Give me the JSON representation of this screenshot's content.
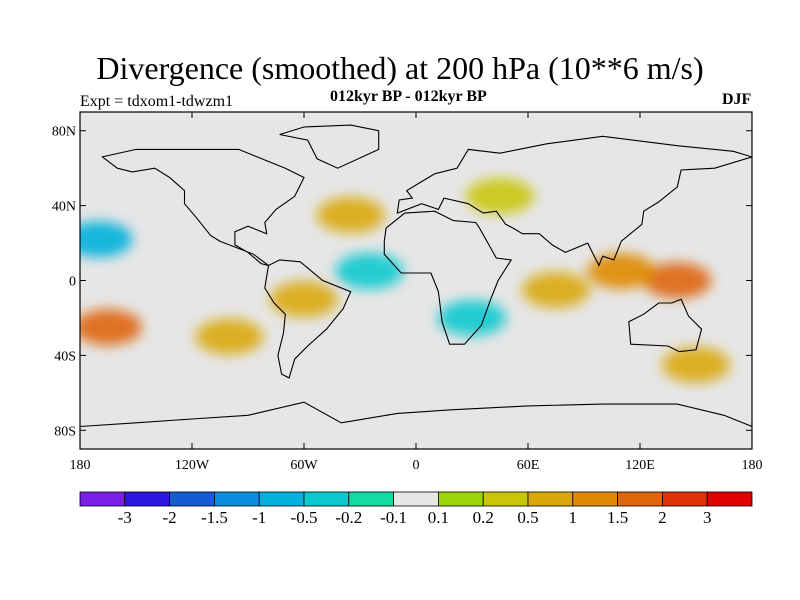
{
  "chart_data": {
    "type": "heatmap",
    "title": "Divergence (smoothed) at 200 hPa (10**6 m/s)",
    "left_string": "Expt = tdxom1-tdwzm1",
    "center_string": "012kyr BP - 012kyr BP",
    "right_string": "DJF",
    "variable": "200 hPa divergence (smoothed), difference",
    "units": "10**6 m/s",
    "xlim": [
      -180,
      180
    ],
    "ylim": [
      -90,
      90
    ],
    "x_ticks": [
      {
        "value": -180,
        "label": "180"
      },
      {
        "value": -120,
        "label": "120W"
      },
      {
        "value": -60,
        "label": "60W"
      },
      {
        "value": 0,
        "label": "0"
      },
      {
        "value": 60,
        "label": "60E"
      },
      {
        "value": 120,
        "label": "120E"
      },
      {
        "value": 180,
        "label": "180"
      }
    ],
    "y_ticks": [
      {
        "value": 80,
        "label": "80N"
      },
      {
        "value": 40,
        "label": "40N"
      },
      {
        "value": 0,
        "label": "0"
      },
      {
        "value": -40,
        "label": "40S"
      },
      {
        "value": -80,
        "label": "80S"
      }
    ],
    "color_levels": [
      "-3",
      "-2",
      "-1.5",
      "-1",
      "-0.5",
      "-0.2",
      "-0.1",
      "0.1",
      "0.2",
      "0.5",
      "1",
      "1.5",
      "2",
      "3"
    ],
    "colors": [
      "#7b1fe6",
      "#2d16e0",
      "#155bd6",
      "#0a8fde",
      "#05b0dc",
      "#09c9cf",
      "#14dca0",
      "#e6e6e6",
      "#9cd608",
      "#c9c608",
      "#d9a808",
      "#de8a06",
      "#de6508",
      "#e0320a",
      "#e00000"
    ],
    "regions": [
      {
        "area": "Central Pacific, north of equator",
        "lon": -170,
        "lat": 22,
        "level": -1
      },
      {
        "area": "Western Pacific warm pool",
        "lon": 140,
        "lat": 0,
        "level": 1.5
      },
      {
        "area": "Maritime Continent",
        "lon": 110,
        "lat": 5,
        "level": 1
      },
      {
        "area": "South Pacific subtropics",
        "lon": -165,
        "lat": -25,
        "level": 1.5
      },
      {
        "area": "Eastern South Pacific",
        "lon": -100,
        "lat": -30,
        "level": 0.5
      },
      {
        "area": "Tropical Indian Ocean",
        "lon": 75,
        "lat": -5,
        "level": 0.5
      },
      {
        "area": "Southern Africa",
        "lon": 30,
        "lat": -20,
        "level": -0.5
      },
      {
        "area": "Northern Atlantic",
        "lon": -35,
        "lat": 35,
        "level": 0.5
      },
      {
        "area": "Eurasia mid-latitudes",
        "lon": 45,
        "lat": 45,
        "level": 0.2
      },
      {
        "area": "Southern Ocean",
        "lon": 150,
        "lat": -45,
        "level": 0.5
      },
      {
        "area": "Tropical Atlantic",
        "lon": -25,
        "lat": 5,
        "level": -0.5
      },
      {
        "area": "Amazon basin",
        "lon": -60,
        "lat": -10,
        "level": 0.5
      },
      {
        "area": "Polar regions",
        "lon": 0,
        "lat": 80,
        "level": 0
      }
    ]
  }
}
